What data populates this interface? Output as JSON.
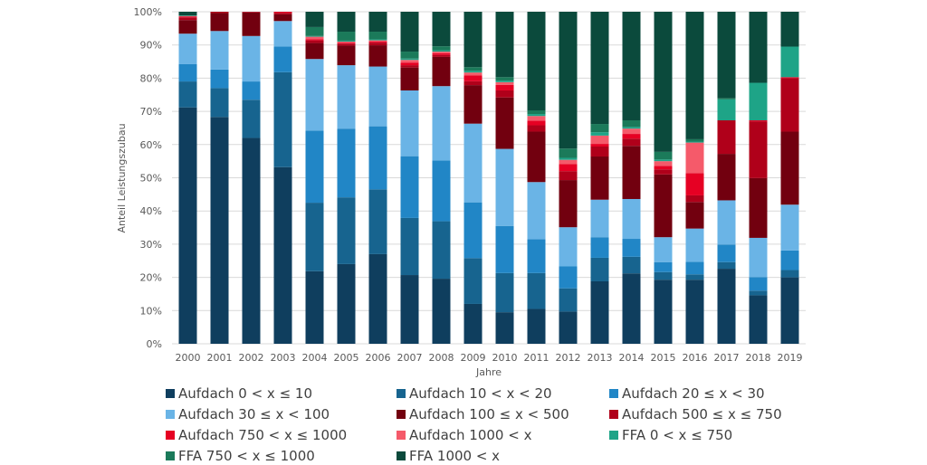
{
  "chart_data": {
    "type": "bar",
    "stacked": true,
    "percent": true,
    "title": "",
    "xlabel": "Jahre",
    "ylabel": "Anteil Leistungszubau",
    "ylim": [
      0,
      100
    ],
    "yticks": [
      "0%",
      "10%",
      "20%",
      "30%",
      "40%",
      "50%",
      "60%",
      "70%",
      "80%",
      "90%",
      "100%"
    ],
    "grid": true,
    "legend_position": "bottom",
    "categories": [
      "2000",
      "2001",
      "2002",
      "2003",
      "2004",
      "2005",
      "2006",
      "2007",
      "2008",
      "2009",
      "2010",
      "2011",
      "2012",
      "2013",
      "2014",
      "2015",
      "2016",
      "2017",
      "2018",
      "2019"
    ],
    "series": [
      {
        "name": "Aufdach 0 < x ≤ 10",
        "color": "#0f3e5e",
        "values": [
          71.2,
          68.3,
          62.0,
          53.2,
          21.8,
          24.0,
          27.0,
          20.7,
          19.6,
          12.0,
          9.5,
          10.5,
          9.7,
          18.8,
          21.2,
          19.3,
          19.3,
          22.6,
          14.6,
          20.0
        ]
      },
      {
        "name": "Aufdach 10 < x < 20",
        "color": "#17648f",
        "values": [
          7.8,
          8.7,
          11.5,
          28.6,
          20.6,
          20.1,
          19.5,
          17.2,
          17.3,
          13.8,
          11.8,
          10.8,
          7.0,
          7.1,
          5.0,
          2.3,
          1.6,
          2.0,
          1.4,
          2.2
        ]
      },
      {
        "name": "Aufdach 20 ≤ x < 30",
        "color": "#2186c6",
        "values": [
          5.2,
          5.6,
          5.5,
          7.7,
          21.7,
          20.7,
          19.0,
          18.6,
          18.3,
          16.8,
          14.2,
          10.2,
          6.6,
          6.2,
          5.4,
          3.0,
          3.8,
          5.3,
          4.1,
          5.9
        ]
      },
      {
        "name": "Aufdach 30 ≤ x < 100",
        "color": "#6ab4e6",
        "values": [
          9.2,
          11.6,
          13.7,
          7.7,
          21.5,
          19.1,
          18.0,
          19.8,
          22.4,
          23.7,
          23.2,
          17.2,
          11.8,
          11.3,
          12.0,
          7.5,
          10.0,
          13.3,
          11.8,
          13.8
        ]
      },
      {
        "name": "Aufdach 100 ≤ x < 500",
        "color": "#72000f",
        "values": [
          4.1,
          5.4,
          7.1,
          2.0,
          4.8,
          5.9,
          6.4,
          6.9,
          8.8,
          11.6,
          15.5,
          15.2,
          14.2,
          13.0,
          16.0,
          18.9,
          8.0,
          14.0,
          18.0,
          22.0
        ]
      },
      {
        "name": "Aufdach 500 ≤ x ≤ 750",
        "color": "#b0001a",
        "values": [
          0.8,
          0.4,
          0.2,
          0.5,
          0.8,
          0.6,
          0.8,
          0.7,
          0.6,
          1.2,
          2.1,
          1.9,
          2.7,
          3.0,
          2.2,
          1.5,
          2.0,
          10.1,
          17.1,
          16.1
        ]
      },
      {
        "name": "Aufdach 750 < x  ≤ 1000",
        "color": "#e60023",
        "values": [
          0.3,
          0.0,
          0.0,
          0.3,
          0.3,
          0.2,
          0.3,
          0.8,
          0.5,
          1.7,
          1.7,
          1.4,
          2.1,
          0.8,
          1.4,
          1.1,
          6.7,
          0.0,
          0.3,
          0.3
        ]
      },
      {
        "name": "Aufdach 1000 < x",
        "color": "#f55a6a",
        "values": [
          0.1,
          0.0,
          0.0,
          0.0,
          0.8,
          0.4,
          0.4,
          0.8,
          0.5,
          0.9,
          0.8,
          1.4,
          1.3,
          2.5,
          1.6,
          1.4,
          9.2,
          0.0,
          0.0,
          0.0
        ]
      },
      {
        "name": "FFA 0 < x ≤ 750",
        "color": "#1ea487",
        "values": [
          0.1,
          0.0,
          0.0,
          0.0,
          0.2,
          0.3,
          0.3,
          0.4,
          0.4,
          0.5,
          0.5,
          0.6,
          0.6,
          1.0,
          0.5,
          0.5,
          0.3,
          6.3,
          11.3,
          9.2
        ]
      },
      {
        "name": "FFA 750 < x  ≤ 1000",
        "color": "#1b7a5a",
        "values": [
          0.1,
          0.0,
          0.0,
          0.0,
          2.7,
          2.7,
          2.3,
          2.1,
          1.2,
          1.1,
          1.0,
          1.1,
          2.8,
          2.5,
          2.0,
          2.3,
          0.7,
          0.4,
          0.0,
          0.0
        ]
      },
      {
        "name": "FFA 1000 < x",
        "color": "#0b4a3c",
        "values": [
          1.1,
          0.0,
          0.0,
          0.0,
          4.6,
          6.0,
          6.0,
          12.0,
          10.4,
          16.7,
          19.7,
          29.7,
          41.2,
          33.8,
          32.7,
          42.2,
          38.4,
          26.0,
          21.4,
          10.5
        ]
      }
    ]
  }
}
